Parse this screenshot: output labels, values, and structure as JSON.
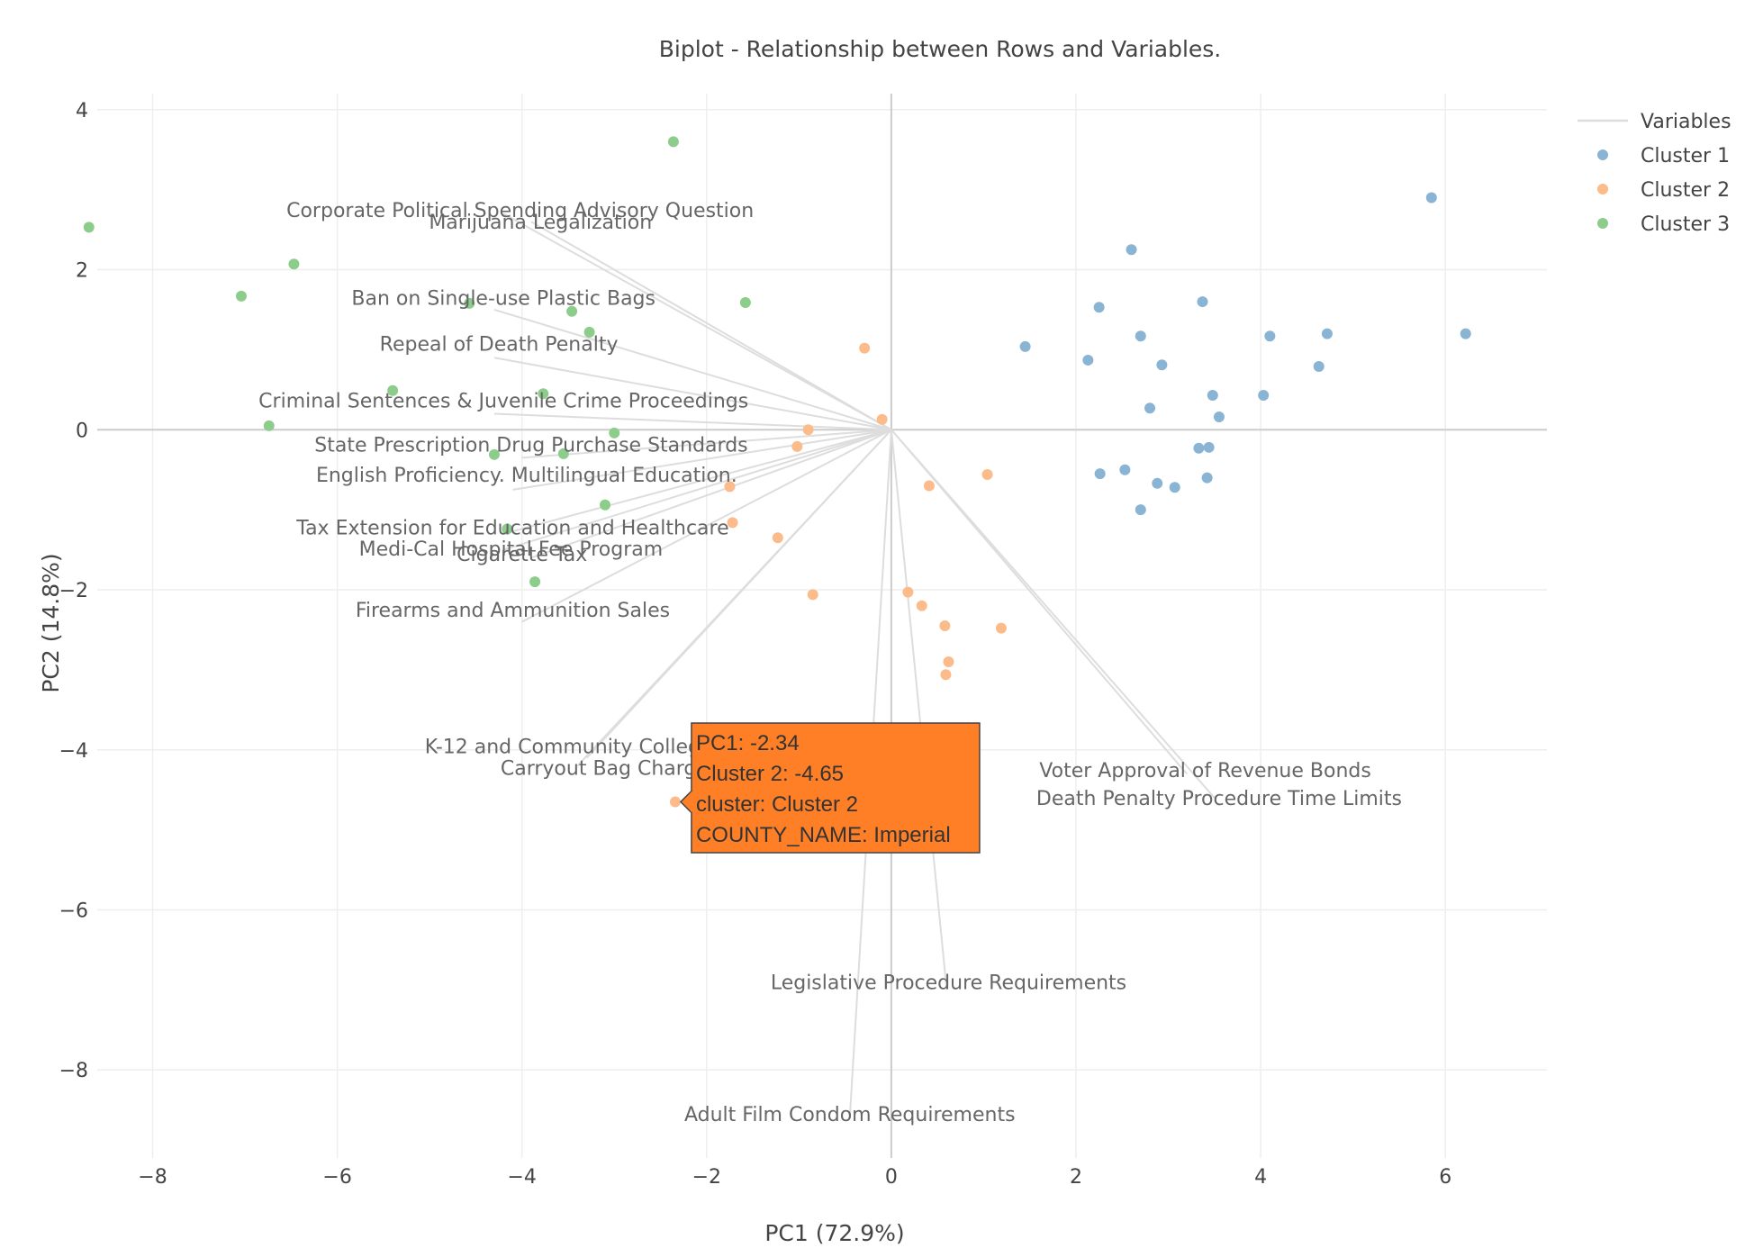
{
  "chart_data": {
    "type": "scatter",
    "title": "Biplot - Relationship between Rows and Variables.",
    "xlabel": "PC1 (72.9%)",
    "ylabel": "PC2 (14.8%)",
    "xlim": [
      -8.6,
      7.1
    ],
    "ylim": [
      -9.1,
      4.2
    ],
    "x_ticks": [
      -8,
      -6,
      -4,
      -2,
      0,
      2,
      4,
      6
    ],
    "y_ticks": [
      -8,
      -6,
      -4,
      -2,
      0,
      2,
      4
    ],
    "grid": true,
    "legend_position": "top-right",
    "legend": [
      {
        "label": "Variables",
        "type": "line",
        "color": "#dddddd"
      },
      {
        "label": "Cluster 1",
        "type": "marker",
        "color": "#8ab4d4"
      },
      {
        "label": "Cluster 2",
        "type": "marker",
        "color": "#fcbb8a"
      },
      {
        "label": "Cluster 3",
        "type": "marker",
        "color": "#8ccd8c"
      }
    ],
    "variables": [
      {
        "label": "Corporate Political Spending Advisory Question",
        "x": -4.2,
        "y": 2.7,
        "lx": -4.02,
        "ly": 2.75
      },
      {
        "label": "Marijuana Legalization",
        "x": -3.9,
        "y": 2.6,
        "lx": -3.8,
        "ly": 2.6
      },
      {
        "label": "Ban on Single-use Plastic Bags",
        "x": -4.3,
        "y": 1.5,
        "lx": -4.2,
        "ly": 1.65
      },
      {
        "label": "Repeal of Death Penalty",
        "x": -4.3,
        "y": 0.9,
        "lx": -4.25,
        "ly": 1.08
      },
      {
        "label": "Criminal Sentences & Juvenile Crime Proceedings",
        "x": -4.3,
        "y": 0.2,
        "lx": -4.2,
        "ly": 0.37
      },
      {
        "label": "State Prescription Drug Purchase Standards",
        "x": -4.0,
        "y": -0.35,
        "lx": -3.9,
        "ly": -0.18
      },
      {
        "label": "English Proficiency. Multilingual Education.",
        "x": -4.1,
        "y": -0.75,
        "lx": -3.95,
        "ly": -0.56
      },
      {
        "label": "Tax Extension for Education and Healthcare",
        "x": -4.2,
        "y": -1.3,
        "lx": -4.1,
        "ly": -1.22
      },
      {
        "label": "Medi-Cal Hospital Fee Program",
        "x": -4.2,
        "y": -1.5,
        "lx": -4.12,
        "ly": -1.48
      },
      {
        "label": "Cigarette Tax",
        "x": -3.9,
        "y": -1.6,
        "lx": -4.0,
        "ly": -1.55
      },
      {
        "label": "Firearms and Ammunition Sales",
        "x": -4.0,
        "y": -2.4,
        "lx": -4.1,
        "ly": -2.25
      },
      {
        "label": "K-12 and Community College Facilities",
        "x": -3.3,
        "y": -4.1,
        "lx": -3.0,
        "ly": -3.95
      },
      {
        "label": "Carryout Bag Charges",
        "x": -3.4,
        "y": -4.2,
        "lx": -3.05,
        "ly": -4.22
      },
      {
        "label": "Voter Approval of Revenue Bonds",
        "x": 3.2,
        "y": -4.3,
        "lx": 3.4,
        "ly": -4.25
      },
      {
        "label": "Death Penalty Procedure Time Limits",
        "x": 3.5,
        "y": -4.6,
        "lx": 3.55,
        "ly": -4.6
      },
      {
        "label": "Legislative Procedure Requirements",
        "x": 0.6,
        "y": -7.0,
        "lx": 0.62,
        "ly": -6.9
      },
      {
        "label": "Adult Film Condom Requirements",
        "x": -0.45,
        "y": -8.6,
        "lx": -0.45,
        "ly": -8.55
      }
    ],
    "series": [
      {
        "name": "Cluster 1",
        "color": "#8ab4d4",
        "points": [
          [
            5.85,
            2.9
          ],
          [
            2.6,
            2.25
          ],
          [
            2.25,
            1.53
          ],
          [
            3.37,
            1.6
          ],
          [
            2.7,
            1.17
          ],
          [
            1.45,
            1.04
          ],
          [
            4.1,
            1.17
          ],
          [
            4.72,
            1.2
          ],
          [
            6.22,
            1.2
          ],
          [
            2.13,
            0.87
          ],
          [
            2.93,
            0.81
          ],
          [
            4.63,
            0.79
          ],
          [
            3.48,
            0.43
          ],
          [
            4.03,
            0.43
          ],
          [
            2.8,
            0.27
          ],
          [
            3.55,
            0.16
          ],
          [
            3.33,
            -0.23
          ],
          [
            3.44,
            -0.22
          ],
          [
            2.26,
            -0.55
          ],
          [
            2.53,
            -0.5
          ],
          [
            2.88,
            -0.67
          ],
          [
            3.07,
            -0.72
          ],
          [
            3.42,
            -0.6
          ],
          [
            2.7,
            -1.0
          ]
        ]
      },
      {
        "name": "Cluster 2",
        "color": "#fcbb8a",
        "points": [
          [
            -0.29,
            1.02
          ],
          [
            -0.1,
            0.13
          ],
          [
            -0.9,
            0.0
          ],
          [
            -1.02,
            -0.21
          ],
          [
            0.41,
            -0.7
          ],
          [
            1.04,
            -0.56
          ],
          [
            -1.75,
            -0.71
          ],
          [
            -1.72,
            -1.16
          ],
          [
            -1.23,
            -1.35
          ],
          [
            -0.85,
            -2.06
          ],
          [
            0.18,
            -2.03
          ],
          [
            0.33,
            -2.2
          ],
          [
            1.19,
            -2.48
          ],
          [
            0.58,
            -2.45
          ],
          [
            0.62,
            -2.9
          ],
          [
            0.59,
            -3.06
          ],
          [
            -2.34,
            -4.65
          ]
        ]
      },
      {
        "name": "Cluster 3",
        "color": "#8ccd8c",
        "points": [
          [
            -2.36,
            3.6
          ],
          [
            -8.69,
            2.53
          ],
          [
            -6.47,
            2.07
          ],
          [
            -7.04,
            1.67
          ],
          [
            -4.57,
            1.58
          ],
          [
            -1.58,
            1.59
          ],
          [
            -3.46,
            1.48
          ],
          [
            -3.27,
            1.22
          ],
          [
            -5.4,
            0.49
          ],
          [
            -3.77,
            0.45
          ],
          [
            -6.74,
            0.05
          ],
          [
            -3.0,
            -0.04
          ],
          [
            -4.3,
            -0.31
          ],
          [
            -3.55,
            -0.3
          ],
          [
            -3.1,
            -0.94
          ],
          [
            -4.16,
            -1.24
          ],
          [
            -3.86,
            -1.9
          ]
        ]
      }
    ],
    "tooltip": {
      "x": -2.34,
      "y": -4.65,
      "color": "#ff7f27",
      "lines": [
        "PC1: -2.34",
        "Cluster 2: -4.65",
        "cluster: Cluster 2",
        "COUNTY_NAME: Imperial"
      ]
    }
  }
}
